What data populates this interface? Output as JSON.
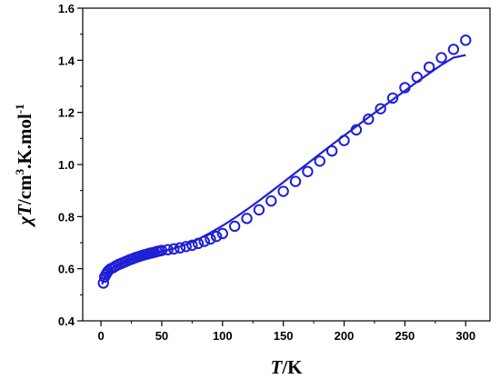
{
  "chart_data": {
    "type": "scatter",
    "title": "",
    "xlabel": {
      "symbol": "T",
      "unit": "K"
    },
    "ylabel": {
      "symbol": "χT",
      "unit_pre": "cm",
      "unit_exp1": "3",
      "unit_mid": ".K.mol",
      "unit_exp2": "-1"
    },
    "xlim": [
      -15,
      320
    ],
    "ylim": [
      0.4,
      1.6
    ],
    "x_ticks": [
      0,
      50,
      100,
      150,
      200,
      250,
      300
    ],
    "y_ticks": [
      0.4,
      0.6,
      0.8,
      1.0,
      1.2,
      1.4,
      1.6
    ],
    "x_tick_labels": [
      "0",
      "50",
      "100",
      "150",
      "200",
      "250",
      "300"
    ],
    "y_tick_labels": [
      "0.4",
      "0.6",
      "0.8",
      "1.0",
      "1.2",
      "1.4",
      "1.6"
    ],
    "color": "#1f1fd6",
    "series": [
      {
        "kind": "markers",
        "marker": "open-circle",
        "x": [
          2,
          3,
          4,
          5,
          6,
          8,
          10,
          12,
          14,
          16,
          18,
          20,
          22,
          24,
          26,
          28,
          30,
          32,
          34,
          36,
          38,
          40,
          42,
          44,
          46,
          48,
          50,
          55,
          60,
          65,
          70,
          75,
          80,
          85,
          90,
          95,
          100,
          110,
          120,
          130,
          140,
          150,
          160,
          170,
          180,
          190,
          200,
          210,
          220,
          230,
          240,
          250,
          260,
          270,
          280,
          290,
          300
        ],
        "y": [
          0.545,
          0.568,
          0.577,
          0.585,
          0.592,
          0.6,
          0.604,
          0.61,
          0.615,
          0.619,
          0.623,
          0.627,
          0.631,
          0.635,
          0.638,
          0.642,
          0.645,
          0.648,
          0.651,
          0.654,
          0.656,
          0.659,
          0.661,
          0.663,
          0.666,
          0.668,
          0.67,
          0.673,
          0.676,
          0.68,
          0.685,
          0.69,
          0.697,
          0.705,
          0.714,
          0.724,
          0.735,
          0.763,
          0.793,
          0.826,
          0.86,
          0.897,
          0.935,
          0.973,
          1.013,
          1.052,
          1.092,
          1.133,
          1.174,
          1.214,
          1.255,
          1.295,
          1.335,
          1.374,
          1.41,
          1.442,
          1.477
        ]
      },
      {
        "kind": "line",
        "x": [
          1,
          2,
          4,
          6,
          8,
          10,
          15,
          20,
          25,
          30,
          35,
          40,
          45,
          50,
          55,
          60,
          70,
          80,
          90,
          100,
          110,
          120,
          130,
          140,
          150,
          160,
          170,
          180,
          190,
          200,
          210,
          220,
          230,
          240,
          250,
          260,
          270,
          280,
          290,
          300
        ],
        "y": [
          0.54,
          0.555,
          0.575,
          0.588,
          0.598,
          0.605,
          0.618,
          0.628,
          0.637,
          0.645,
          0.651,
          0.657,
          0.662,
          0.667,
          0.672,
          0.678,
          0.693,
          0.713,
          0.738,
          0.765,
          0.795,
          0.827,
          0.861,
          0.896,
          0.932,
          0.968,
          1.004,
          1.04,
          1.076,
          1.111,
          1.146,
          1.181,
          1.215,
          1.249,
          1.283,
          1.317,
          1.35,
          1.382,
          1.41,
          1.42
        ]
      }
    ]
  }
}
